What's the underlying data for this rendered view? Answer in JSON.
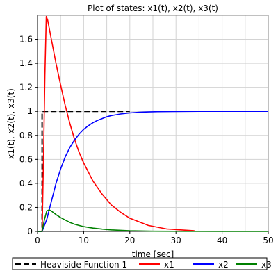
{
  "chart_data": {
    "type": "line",
    "title": "Plot of states: x1(t), x2(t), x3(t)",
    "xlabel": "time [sec]",
    "ylabel": "x1(t), x2(t), x3(t)",
    "xlim": [
      0,
      50
    ],
    "ylim": [
      0,
      1.8
    ],
    "xticks": [
      0,
      10,
      20,
      30,
      40,
      50
    ],
    "yticks": [
      0,
      0.2,
      0.4,
      0.6,
      0.8,
      1,
      1.2,
      1.4,
      1.6
    ],
    "xtick_labels": [
      "0",
      "10",
      "20",
      "30",
      "40",
      "50"
    ],
    "ytick_labels": [
      "0",
      "0.2",
      "0.4",
      "0.6",
      "0.8",
      "1",
      "1.2",
      "1.4",
      "1.6"
    ],
    "grid": true,
    "legend_position": "bottom",
    "series": [
      {
        "name": "Heaviside Function 1",
        "color": "#000000",
        "dash": true,
        "x": [
          0,
          1,
          1,
          20
        ],
        "y": [
          0,
          0,
          1,
          1
        ]
      },
      {
        "name": "x1",
        "color": "#ff0000",
        "dash": false,
        "x": [
          0,
          1,
          1.3,
          1.6,
          1.9,
          2.2,
          3,
          4,
          5,
          6,
          7,
          8,
          9,
          10,
          12,
          14,
          16,
          18,
          20,
          24,
          28,
          34
        ],
        "y": [
          0,
          0,
          0.6,
          1.3,
          1.79,
          1.76,
          1.6,
          1.4,
          1.22,
          1.05,
          0.9,
          0.77,
          0.66,
          0.57,
          0.42,
          0.31,
          0.22,
          0.16,
          0.11,
          0.05,
          0.02,
          0.005
        ]
      },
      {
        "name": "x2",
        "color": "#0000ff",
        "dash": false,
        "x": [
          0,
          1,
          2,
          3,
          4,
          5,
          6,
          7,
          8,
          9,
          10,
          11,
          12,
          13,
          14,
          15,
          16,
          17,
          18,
          19,
          20,
          22,
          24,
          26,
          30,
          35,
          40,
          45,
          50
        ],
        "y": [
          0,
          0,
          0.1,
          0.25,
          0.4,
          0.52,
          0.62,
          0.7,
          0.76,
          0.81,
          0.85,
          0.88,
          0.905,
          0.925,
          0.94,
          0.955,
          0.965,
          0.972,
          0.978,
          0.983,
          0.987,
          0.992,
          0.995,
          0.997,
          0.999,
          1,
          1,
          1,
          1
        ]
      },
      {
        "name": "x3",
        "color": "#008000",
        "dash": false,
        "x": [
          0,
          1,
          1.5,
          2,
          2.5,
          3,
          4,
          5,
          6,
          7,
          8,
          10,
          12,
          14,
          16,
          18,
          20,
          25,
          30,
          40,
          50
        ],
        "y": [
          0,
          0,
          0.1,
          0.17,
          0.18,
          0.17,
          0.14,
          0.115,
          0.095,
          0.075,
          0.06,
          0.04,
          0.028,
          0.019,
          0.013,
          0.009,
          0.006,
          0.002,
          0.001,
          0,
          0
        ]
      }
    ]
  }
}
